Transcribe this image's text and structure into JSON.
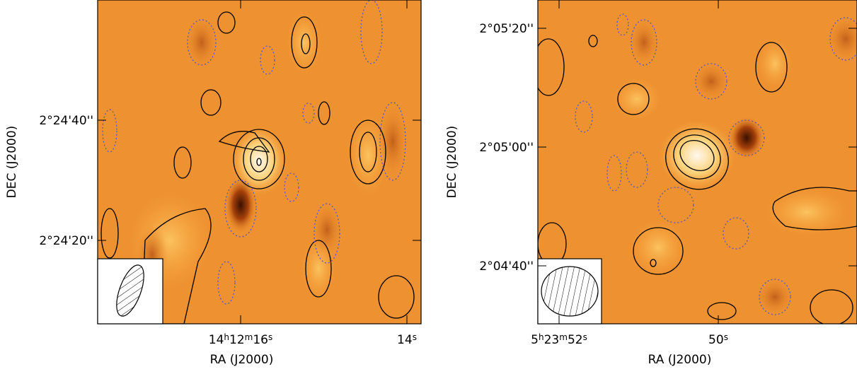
{
  "panels": [
    {
      "dec_ticks": [
        "2°24'40''",
        "2°24'20''"
      ],
      "ra_ticks": [
        [
          "14",
          "h",
          "12",
          "m",
          "16",
          "s"
        ],
        [
          "14",
          "s"
        ]
      ],
      "x_label": "RA (J2000)",
      "y_label": "DEC (J2000)"
    },
    {
      "dec_ticks": [
        "2°05'20''",
        "2°05'00''",
        "2°04'40''"
      ],
      "ra_ticks": [
        [
          "5",
          "h",
          "23",
          "m",
          "52",
          "s"
        ],
        [
          "50",
          "s"
        ]
      ],
      "x_label": "RA (J2000)",
      "y_label": "DEC (J2000)"
    }
  ]
}
